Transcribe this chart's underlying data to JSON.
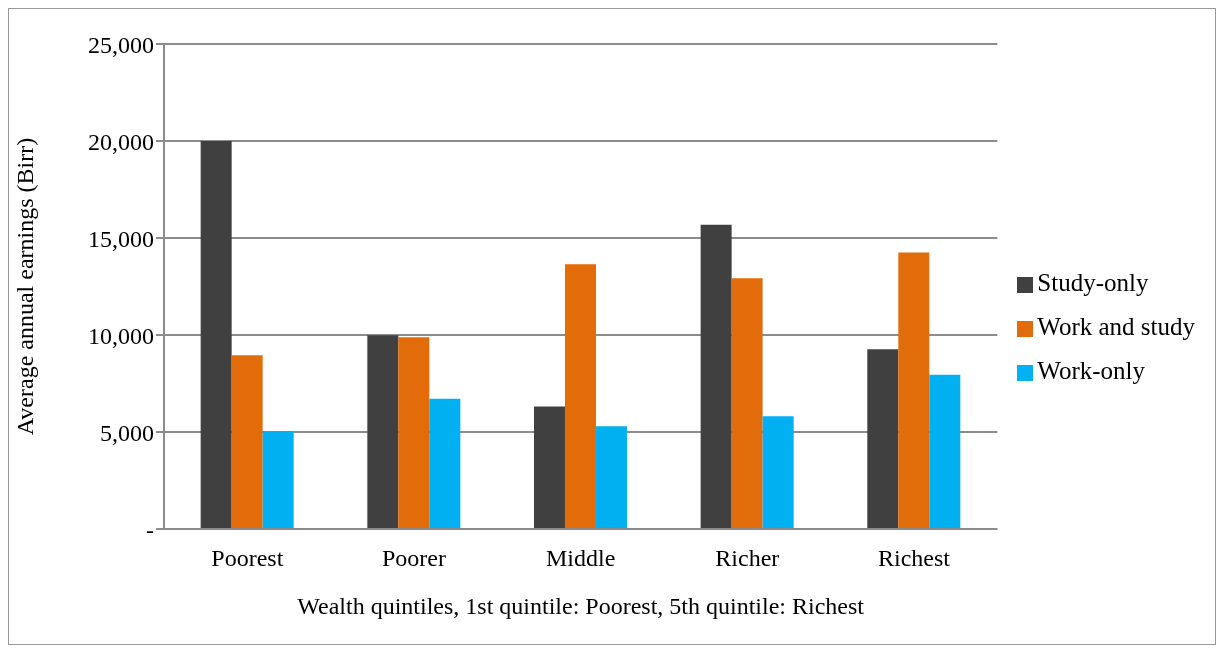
{
  "chart_data": {
    "type": "bar",
    "xlabel": "Wealth quintiles, 1st quintile: Poorest, 5th quintile: Richest",
    "ylabel": "Average annual earnings (Birr)",
    "categories": [
      "Poorest",
      "Poorer",
      "Middle",
      "Richer",
      "Richest"
    ],
    "series": [
      {
        "name": "Study-only",
        "color": "#404040",
        "values": [
          20000,
          9990,
          6310,
          15680,
          9270
        ]
      },
      {
        "name": "Work and study",
        "color": "#e36c0a",
        "values": [
          8960,
          9890,
          13650,
          12930,
          14250
        ]
      },
      {
        "name": "Work-only",
        "color": "#00b0f0",
        "values": [
          5040,
          6720,
          5300,
          5810,
          7950
        ]
      }
    ],
    "ylim": [
      0,
      25000
    ],
    "yticks": [
      {
        "value": 0,
        "label": "-"
      },
      {
        "value": 5000,
        "label": "5,000"
      },
      {
        "value": 10000,
        "label": "10,000"
      },
      {
        "value": 15000,
        "label": "15,000"
      },
      {
        "value": 20000,
        "label": "20,000"
      },
      {
        "value": 25000,
        "label": "25,000"
      }
    ],
    "grid": "y",
    "legend": "right"
  }
}
